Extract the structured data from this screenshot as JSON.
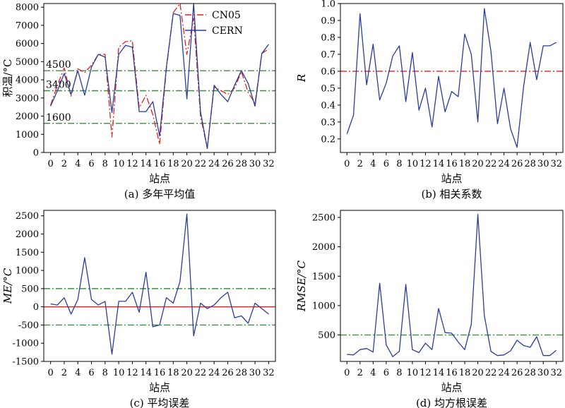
{
  "chart_data": [
    {
      "type": "line",
      "caption": "(a) 多年平均值",
      "xlabel": "站点",
      "ylabel": "积温/°C",
      "xlim": [
        -1,
        33
      ],
      "ylim": [
        0,
        8200
      ],
      "xticks": [
        0,
        2,
        4,
        6,
        8,
        10,
        12,
        14,
        16,
        18,
        20,
        22,
        24,
        26,
        28,
        30,
        32
      ],
      "yticks": [
        0,
        1000,
        2000,
        3000,
        4000,
        5000,
        6000,
        7000,
        8000
      ],
      "grid": false,
      "legend": "top-right",
      "reference_lines": [
        {
          "y": 4500,
          "label": "4500",
          "color": "#3c8f3c",
          "style": "dashdot"
        },
        {
          "y": 3400,
          "label": "3400",
          "color": "#3c8f3c",
          "style": "dashdot"
        },
        {
          "y": 1600,
          "label": "1600",
          "color": "#3c8f3c",
          "style": "dashdot"
        }
      ],
      "series": [
        {
          "name": "CN05",
          "color": "#e02020",
          "style": "dashdot",
          "x": [
            0,
            1,
            2,
            3,
            4,
            5,
            6,
            7,
            8,
            9,
            10,
            11,
            12,
            13,
            14,
            15,
            16,
            17,
            18,
            19,
            20,
            21,
            22,
            23,
            24,
            25,
            26,
            27,
            28,
            29,
            30,
            31,
            32
          ],
          "values": [
            2600,
            3700,
            4650,
            3100,
            4600,
            4400,
            4800,
            5400,
            5400,
            850,
            5800,
            6100,
            6150,
            2450,
            3150,
            2100,
            450,
            4600,
            7700,
            8200,
            5400,
            7400,
            2000,
            220,
            3600,
            3400,
            3200,
            3550,
            4450,
            3300,
            2700,
            5450,
            5700
          ]
        },
        {
          "name": "CERN",
          "color": "#2a3d9a",
          "style": "solid",
          "x": [
            0,
            1,
            2,
            3,
            4,
            5,
            6,
            7,
            8,
            9,
            10,
            11,
            12,
            13,
            14,
            15,
            16,
            17,
            18,
            19,
            20,
            21,
            22,
            23,
            24,
            25,
            26,
            27,
            28,
            29,
            30,
            31,
            32
          ],
          "values": [
            2550,
            3400,
            4350,
            3200,
            4500,
            3150,
            4700,
            5400,
            5250,
            2200,
            5400,
            5900,
            5800,
            2250,
            2250,
            2800,
            900,
            4700,
            7650,
            7550,
            2950,
            8200,
            2250,
            220,
            3700,
            3200,
            2800,
            3700,
            4500,
            3800,
            2550,
            5450,
            5950
          ]
        }
      ]
    },
    {
      "type": "line",
      "caption": "(b) 相关系数",
      "xlabel": "站点",
      "ylabel": "R",
      "xlim": [
        -1,
        33
      ],
      "ylim": [
        0.12,
        1.0
      ],
      "xticks": [
        0,
        2,
        4,
        6,
        8,
        10,
        12,
        14,
        16,
        18,
        20,
        22,
        24,
        26,
        28,
        30,
        32
      ],
      "yticks": [
        0.2,
        0.3,
        0.4,
        0.5,
        0.6,
        0.7,
        0.8,
        0.9,
        1.0
      ],
      "ytick_labels": [
        "0.2",
        "0.3",
        "0.4",
        "0.5",
        "0.6",
        "0.7",
        "0.8",
        "0.9",
        "1.0"
      ],
      "grid": false,
      "reference_lines": [
        {
          "y": 0.6,
          "color": "#e02020",
          "style": "dashdot"
        }
      ],
      "series": [
        {
          "color": "#2a3d9a",
          "style": "solid",
          "x": [
            0,
            1,
            2,
            3,
            4,
            5,
            6,
            7,
            8,
            9,
            10,
            11,
            12,
            13,
            14,
            15,
            16,
            17,
            18,
            19,
            20,
            21,
            22,
            23,
            24,
            25,
            26,
            27,
            28,
            29,
            30,
            31,
            32
          ],
          "values": [
            0.23,
            0.34,
            0.94,
            0.52,
            0.76,
            0.43,
            0.53,
            0.69,
            0.75,
            0.42,
            0.71,
            0.37,
            0.5,
            0.27,
            0.57,
            0.36,
            0.48,
            0.45,
            0.82,
            0.7,
            0.3,
            0.97,
            0.72,
            0.29,
            0.5,
            0.26,
            0.15,
            0.51,
            0.77,
            0.55,
            0.75,
            0.75,
            0.77
          ]
        }
      ]
    },
    {
      "type": "line",
      "caption": "(c) 平均误差",
      "xlabel": "站点",
      "ylabel": "ME/°C",
      "xlim": [
        -1,
        33
      ],
      "ylim": [
        -1500,
        2650
      ],
      "xticks": [
        0,
        2,
        4,
        6,
        8,
        10,
        12,
        14,
        16,
        18,
        20,
        22,
        24,
        26,
        28,
        30,
        32
      ],
      "xtick_labels": [
        "0",
        "2",
        "4",
        "6",
        "8",
        "10",
        "12",
        "14",
        "16",
        "18",
        "20",
        "22",
        "24",
        "26",
        "28",
        "30",
        "32"
      ],
      "yticks": [
        -1500,
        -1000,
        -500,
        0,
        500,
        1000,
        1500,
        2000,
        2500
      ],
      "grid": false,
      "reference_lines": [
        {
          "y": 500,
          "color": "#3c8f3c",
          "style": "dashdot"
        },
        {
          "y": 0,
          "color": "#e02020",
          "style": "solid"
        },
        {
          "y": -500,
          "color": "#3c8f3c",
          "style": "dashdot"
        }
      ],
      "series": [
        {
          "color": "#2a3d9a",
          "style": "solid",
          "x": [
            0,
            1,
            2,
            3,
            4,
            5,
            6,
            7,
            8,
            9,
            10,
            11,
            12,
            13,
            14,
            15,
            16,
            17,
            18,
            19,
            20,
            21,
            22,
            23,
            24,
            25,
            26,
            27,
            28,
            29,
            30,
            31,
            32
          ],
          "values": [
            80,
            50,
            250,
            -200,
            200,
            1350,
            200,
            50,
            150,
            -1300,
            150,
            150,
            400,
            -150,
            950,
            -550,
            -500,
            250,
            100,
            700,
            2550,
            -800,
            100,
            -50,
            50,
            250,
            400,
            -300,
            -250,
            -450,
            100,
            -50,
            -200
          ]
        }
      ]
    },
    {
      "type": "line",
      "caption": "(d) 均方根误差",
      "xlabel": "站点",
      "ylabel": "RMSE/°C",
      "xlim": [
        -1,
        33
      ],
      "ylim": [
        50,
        2620
      ],
      "xticks": [
        0,
        2,
        4,
        6,
        8,
        10,
        12,
        14,
        16,
        18,
        20,
        22,
        24,
        26,
        28,
        30,
        32
      ],
      "yticks": [
        500,
        1000,
        1500,
        2000,
        2500
      ],
      "grid": false,
      "reference_lines": [
        {
          "y": 500,
          "color": "#3c8f3c",
          "style": "dashdot"
        }
      ],
      "series": [
        {
          "color": "#2a3d9a",
          "style": "solid",
          "x": [
            0,
            1,
            2,
            3,
            4,
            5,
            6,
            7,
            8,
            9,
            10,
            11,
            12,
            13,
            14,
            15,
            16,
            17,
            18,
            19,
            20,
            21,
            22,
            23,
            24,
            25,
            26,
            27,
            28,
            29,
            30,
            31,
            32
          ],
          "values": [
            170,
            160,
            250,
            270,
            210,
            1380,
            330,
            130,
            220,
            1360,
            250,
            200,
            360,
            250,
            950,
            540,
            530,
            380,
            250,
            680,
            2550,
            830,
            220,
            150,
            160,
            230,
            410,
            320,
            290,
            470,
            150,
            150,
            240
          ]
        }
      ]
    }
  ]
}
